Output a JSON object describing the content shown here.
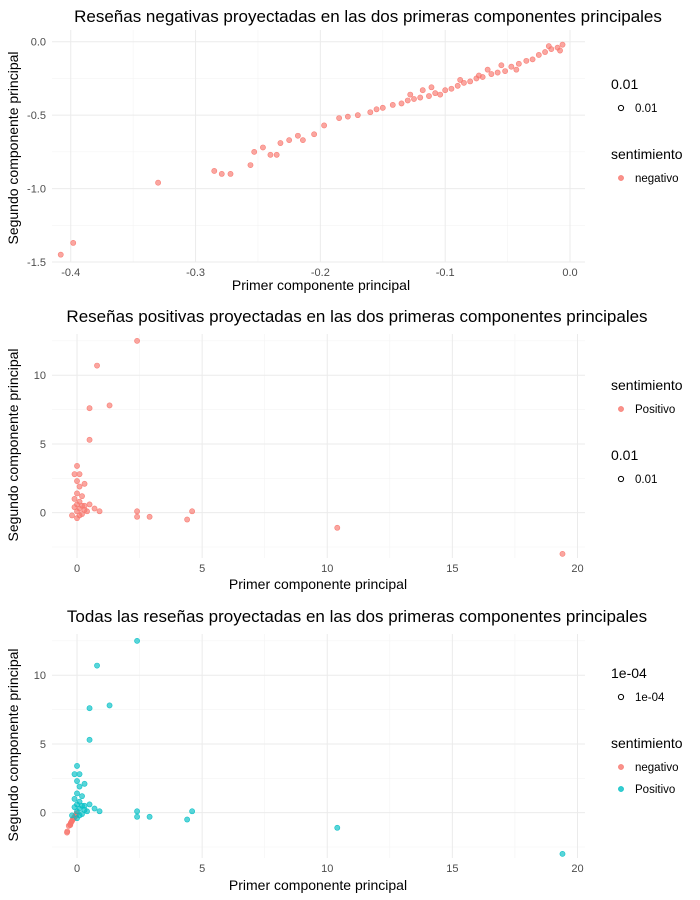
{
  "chart_data": [
    {
      "type": "scatter",
      "title": "Reseñas negativas proyectadas en las dos primeras componentes principales",
      "xlabel": "Primer componente principal",
      "ylabel": "Segundo componente principal",
      "xlim": [
        -0.415,
        0.012
      ],
      "ylim": [
        -1.5,
        0.08
      ],
      "xticks": [
        -0.4,
        -0.3,
        -0.2,
        -0.1,
        0.0
      ],
      "xtick_labels": [
        "-0.4",
        "-0.3",
        "-0.2",
        "-0.1",
        "0.0"
      ],
      "yticks": [
        -1.5,
        -1.0,
        -0.5,
        0.0
      ],
      "ytick_labels": [
        "-1.5",
        "-1.0",
        "-0.5",
        "0.0"
      ],
      "grid": true,
      "legend_position": "right",
      "legends": [
        {
          "title": "0.01",
          "items": [
            {
              "label": "0.01",
              "kind": "hollow",
              "color": "#000000"
            }
          ]
        },
        {
          "title": "sentimiento",
          "items": [
            {
              "label": "negativo",
              "kind": "filled",
              "color": "#F8766D"
            }
          ]
        }
      ],
      "series": [
        {
          "name": "negativo",
          "color": "#F8766D",
          "points": [
            [
              -0.408,
              -1.45
            ],
            [
              -0.398,
              -1.37
            ],
            [
              -0.33,
              -0.96
            ],
            [
              -0.285,
              -0.88
            ],
            [
              -0.279,
              -0.9
            ],
            [
              -0.272,
              -0.9
            ],
            [
              -0.256,
              -0.84
            ],
            [
              -0.253,
              -0.75
            ],
            [
              -0.246,
              -0.72
            ],
            [
              -0.24,
              -0.77
            ],
            [
              -0.235,
              -0.77
            ],
            [
              -0.232,
              -0.69
            ],
            [
              -0.225,
              -0.67
            ],
            [
              -0.218,
              -0.64
            ],
            [
              -0.214,
              -0.67
            ],
            [
              -0.205,
              -0.63
            ],
            [
              -0.197,
              -0.57
            ],
            [
              -0.185,
              -0.52
            ],
            [
              -0.178,
              -0.51
            ],
            [
              -0.17,
              -0.5
            ],
            [
              -0.16,
              -0.48
            ],
            [
              -0.15,
              -0.45
            ],
            [
              -0.142,
              -0.43
            ],
            [
              -0.135,
              -0.42
            ],
            [
              -0.13,
              -0.4
            ],
            [
              -0.125,
              -0.39
            ],
            [
              -0.12,
              -0.38
            ],
            [
              -0.113,
              -0.37
            ],
            [
              -0.108,
              -0.35
            ],
            [
              -0.1,
              -0.33
            ],
            [
              -0.095,
              -0.32
            ],
            [
              -0.09,
              -0.3
            ],
            [
              -0.085,
              -0.28
            ],
            [
              -0.08,
              -0.27
            ],
            [
              -0.075,
              -0.25
            ],
            [
              -0.07,
              -0.24
            ],
            [
              -0.063,
              -0.22
            ],
            [
              -0.058,
              -0.21
            ],
            [
              -0.052,
              -0.2
            ],
            [
              -0.047,
              -0.17
            ],
            [
              -0.041,
              -0.15
            ],
            [
              -0.035,
              -0.13
            ],
            [
              -0.03,
              -0.12
            ],
            [
              -0.025,
              -0.09
            ],
            [
              -0.02,
              -0.07
            ],
            [
              -0.015,
              -0.05
            ],
            [
              -0.01,
              -0.04
            ],
            [
              -0.006,
              -0.02
            ],
            [
              -0.155,
              -0.46
            ],
            [
              -0.128,
              -0.36
            ],
            [
              -0.118,
              -0.33
            ],
            [
              -0.104,
              -0.36
            ],
            [
              -0.088,
              -0.26
            ],
            [
              -0.066,
              -0.19
            ],
            [
              -0.043,
              -0.19
            ],
            [
              -0.017,
              -0.03
            ],
            [
              -0.111,
              -0.31
            ],
            [
              -0.073,
              -0.23
            ],
            [
              -0.055,
              -0.16
            ],
            [
              -0.008,
              -0.06
            ]
          ]
        }
      ]
    },
    {
      "type": "scatter",
      "title": "Reseñas positivas proyectadas en las dos primeras componentes principales",
      "xlabel": "Primer componente principal",
      "ylabel": "Segundo componente principal",
      "xlim": [
        -1.0,
        20.3
      ],
      "ylim": [
        -3.3,
        13.0
      ],
      "xticks": [
        0,
        5,
        10,
        15,
        20
      ],
      "xtick_labels": [
        "0",
        "5",
        "10",
        "15",
        "20"
      ],
      "yticks": [
        0,
        5,
        10
      ],
      "ytick_labels": [
        "0",
        "5",
        "10"
      ],
      "grid": true,
      "legend_position": "right",
      "legends": [
        {
          "title": "sentimiento",
          "items": [
            {
              "label": "Positivo",
              "kind": "filled",
              "color": "#F8766D"
            }
          ]
        },
        {
          "title": "0.01",
          "items": [
            {
              "label": "0.01",
              "kind": "hollow",
              "color": "#000000"
            }
          ]
        }
      ],
      "series": [
        {
          "name": "Positivo",
          "color": "#F8766D",
          "points": [
            [
              2.4,
              12.5
            ],
            [
              0.8,
              10.7
            ],
            [
              1.3,
              7.8
            ],
            [
              0.5,
              7.6
            ],
            [
              0.5,
              5.3
            ],
            [
              0.0,
              3.4
            ],
            [
              -0.1,
              2.8
            ],
            [
              0.1,
              2.8
            ],
            [
              0.0,
              2.3
            ],
            [
              0.1,
              1.9
            ],
            [
              0.3,
              2.1
            ],
            [
              0.0,
              1.4
            ],
            [
              0.2,
              1.2
            ],
            [
              -0.1,
              1.0
            ],
            [
              0.1,
              0.8
            ],
            [
              0.0,
              0.6
            ],
            [
              0.2,
              0.5
            ],
            [
              -0.1,
              0.4
            ],
            [
              0.1,
              0.3
            ],
            [
              0.3,
              0.2
            ],
            [
              0.0,
              0.1
            ],
            [
              0.4,
              0.1
            ],
            [
              -0.2,
              -0.2
            ],
            [
              0.1,
              -0.2
            ],
            [
              0.5,
              0.6
            ],
            [
              0.7,
              0.3
            ],
            [
              0.9,
              0.1
            ],
            [
              0.0,
              -0.4
            ],
            [
              0.2,
              -0.1
            ],
            [
              0.3,
              0.5
            ],
            [
              2.4,
              0.1
            ],
            [
              2.4,
              -0.3
            ],
            [
              2.9,
              -0.3
            ],
            [
              4.6,
              0.1
            ],
            [
              4.4,
              -0.5
            ],
            [
              10.4,
              -1.1
            ],
            [
              19.4,
              -3.0
            ]
          ]
        }
      ]
    },
    {
      "type": "scatter",
      "title": "Todas las reseñas proyectadas en las dos primeras componentes principales",
      "xlabel": "Primer componente principal",
      "ylabel": "Segundo componente principal",
      "xlim": [
        -1.0,
        20.3
      ],
      "ylim": [
        -3.3,
        13.0
      ],
      "xticks": [
        0,
        5,
        10,
        15,
        20
      ],
      "xtick_labels": [
        "0",
        "5",
        "10",
        "15",
        "20"
      ],
      "yticks": [
        0,
        5,
        10
      ],
      "ytick_labels": [
        "0",
        "5",
        "10"
      ],
      "grid": true,
      "legend_position": "right",
      "legends": [
        {
          "title": "1e-04",
          "items": [
            {
              "label": "1e-04",
              "kind": "hollow",
              "color": "#000000"
            }
          ]
        },
        {
          "title": "sentimiento",
          "items": [
            {
              "label": "negativo",
              "kind": "filled",
              "color": "#F8766D"
            },
            {
              "label": "Positivo",
              "kind": "filled",
              "color": "#00BFC4"
            }
          ]
        }
      ],
      "series": [
        {
          "name": "negativo",
          "color": "#F8766D",
          "points": [
            [
              -0.4,
              -1.45
            ],
            [
              -0.39,
              -1.37
            ],
            [
              -0.33,
              -0.96
            ],
            [
              -0.28,
              -0.88
            ],
            [
              -0.27,
              -0.9
            ],
            [
              -0.25,
              -0.75
            ],
            [
              -0.23,
              -0.69
            ],
            [
              -0.2,
              -0.6
            ],
            [
              -0.18,
              -0.52
            ],
            [
              -0.15,
              -0.45
            ],
            [
              -0.12,
              -0.38
            ],
            [
              -0.1,
              -0.33
            ],
            [
              -0.08,
              -0.27
            ],
            [
              -0.05,
              -0.2
            ],
            [
              -0.03,
              -0.12
            ],
            [
              -0.01,
              -0.04
            ]
          ]
        },
        {
          "name": "Positivo",
          "color": "#00BFC4",
          "points": [
            [
              2.4,
              12.5
            ],
            [
              0.8,
              10.7
            ],
            [
              1.3,
              7.8
            ],
            [
              0.5,
              7.6
            ],
            [
              0.5,
              5.3
            ],
            [
              0.0,
              3.4
            ],
            [
              -0.1,
              2.8
            ],
            [
              0.1,
              2.8
            ],
            [
              0.0,
              2.3
            ],
            [
              0.1,
              1.9
            ],
            [
              0.3,
              2.1
            ],
            [
              0.0,
              1.4
            ],
            [
              0.2,
              1.2
            ],
            [
              -0.1,
              1.0
            ],
            [
              0.1,
              0.8
            ],
            [
              0.0,
              0.6
            ],
            [
              0.2,
              0.5
            ],
            [
              -0.1,
              0.4
            ],
            [
              0.1,
              0.3
            ],
            [
              0.3,
              0.2
            ],
            [
              0.0,
              0.1
            ],
            [
              0.4,
              0.1
            ],
            [
              -0.2,
              -0.2
            ],
            [
              0.1,
              -0.2
            ],
            [
              0.5,
              0.6
            ],
            [
              0.7,
              0.3
            ],
            [
              0.9,
              0.1
            ],
            [
              0.0,
              -0.4
            ],
            [
              0.2,
              -0.1
            ],
            [
              0.3,
              0.5
            ],
            [
              2.4,
              0.1
            ],
            [
              2.4,
              -0.3
            ],
            [
              2.9,
              -0.3
            ],
            [
              4.6,
              0.1
            ],
            [
              4.4,
              -0.5
            ],
            [
              10.4,
              -1.1
            ],
            [
              19.4,
              -3.0
            ]
          ]
        }
      ]
    }
  ]
}
